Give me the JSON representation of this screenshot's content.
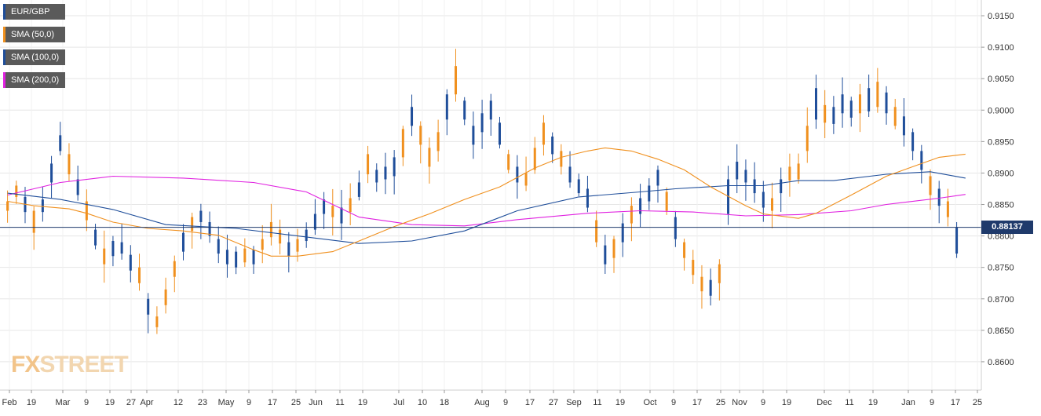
{
  "legend": [
    {
      "label": "EUR/GBP",
      "color": "#1f4e9a"
    },
    {
      "label": "SMA (50,0)",
      "color": "#f0901e"
    },
    {
      "label": "SMA (100,0)",
      "color": "#1f4e9a"
    },
    {
      "label": "SMA (200,0)",
      "color": "#e020e0"
    }
  ],
  "watermark": {
    "fx": "FX",
    "street": "STREET"
  },
  "last_price_label": "0.88137",
  "colors": {
    "bull": "#1f4e9a",
    "bear": "#f0901e",
    "sma50": "#f0901e",
    "sma100": "#1f4e9a",
    "sma200": "#e020e0",
    "price_line": "#1f3a6b",
    "grid": "#e6e6e6",
    "axis_text": "#333333"
  },
  "chart_data": {
    "type": "candlestick",
    "symbol": "EUR/GBP",
    "timeframe": "daily",
    "ylim": [
      0.8555,
      0.9175
    ],
    "y_ticks": [
      "0.9150",
      "0.9100",
      "0.9050",
      "0.9000",
      "0.8950",
      "0.8900",
      "0.8850",
      "0.8800",
      "0.8750",
      "0.8700",
      "0.8650",
      "0.8600"
    ],
    "x_ticks": [
      "Feb",
      "19",
      "Mar",
      "9",
      "19",
      "27",
      "Apr",
      "12",
      "23",
      "May",
      "9",
      "17",
      "25",
      "Jun",
      "11",
      "19",
      "Jul",
      "10",
      "18",
      "Aug",
      "9",
      "17",
      "27",
      "Sep",
      "11",
      "19",
      "Oct",
      "9",
      "17",
      "25",
      "Nov",
      "9",
      "19",
      "Dec",
      "11",
      "19",
      "Jan",
      "9",
      "17",
      "25"
    ],
    "last_price": 0.88137,
    "price_anchors": [
      [
        0.884,
        0.8855
      ],
      [
        0.8862,
        0.888
      ],
      [
        0.8838,
        0.8862
      ],
      [
        0.8805,
        0.884
      ],
      [
        0.8838,
        0.8858
      ],
      [
        0.8885,
        0.8915
      ],
      [
        0.8935,
        0.896
      ],
      [
        0.8898,
        0.893
      ],
      [
        0.8865,
        0.889
      ],
      [
        0.8825,
        0.8855
      ],
      [
        0.8785,
        0.881
      ],
      [
        0.8755,
        0.878
      ],
      [
        0.8768,
        0.8792
      ],
      [
        0.8772,
        0.879
      ],
      [
        0.8745,
        0.877
      ],
      [
        0.8725,
        0.875
      ],
      [
        0.8675,
        0.87
      ],
      [
        0.8655,
        0.8672
      ],
      [
        0.869,
        0.8715
      ],
      [
        0.8735,
        0.876
      ],
      [
        0.8775,
        0.8805
      ],
      [
        0.8808,
        0.883
      ],
      [
        0.8822,
        0.884
      ],
      [
        0.88,
        0.8822
      ],
      [
        0.8772,
        0.8795
      ],
      [
        0.8755,
        0.8778
      ],
      [
        0.875,
        0.8775
      ],
      [
        0.8758,
        0.878
      ],
      [
        0.8755,
        0.8778
      ],
      [
        0.8778,
        0.8795
      ],
      [
        0.8798,
        0.8822
      ],
      [
        0.8788,
        0.881
      ],
      [
        0.8768,
        0.879
      ],
      [
        0.8775,
        0.8795
      ],
      [
        0.8792,
        0.881
      ],
      [
        0.881,
        0.8835
      ],
      [
        0.8835,
        0.8858
      ],
      [
        0.883,
        0.8848
      ],
      [
        0.882,
        0.8845
      ],
      [
        0.8838,
        0.886
      ],
      [
        0.8862,
        0.8885
      ],
      [
        0.8898,
        0.893
      ],
      [
        0.8885,
        0.8905
      ],
      [
        0.889,
        0.891
      ],
      [
        0.8895,
        0.8925
      ],
      [
        0.8925,
        0.897
      ],
      [
        0.8975,
        0.9005
      ],
      [
        0.8945,
        0.8975
      ],
      [
        0.891,
        0.894
      ],
      [
        0.8935,
        0.8965
      ],
      [
        0.8985,
        0.9025
      ],
      [
        0.9025,
        0.907
      ],
      [
        0.8985,
        0.9015
      ],
      [
        0.8945,
        0.8975
      ],
      [
        0.8965,
        0.8995
      ],
      [
        0.8985,
        0.9015
      ],
      [
        0.8945,
        0.898
      ],
      [
        0.8905,
        0.893
      ],
      [
        0.8885,
        0.891
      ],
      [
        0.888,
        0.89
      ],
      [
        0.8905,
        0.894
      ],
      [
        0.8945,
        0.898
      ],
      [
        0.893,
        0.8958
      ],
      [
        0.891,
        0.8935
      ],
      [
        0.8885,
        0.891
      ],
      [
        0.8868,
        0.889
      ],
      [
        0.8845,
        0.8875
      ],
      [
        0.879,
        0.8825
      ],
      [
        0.8755,
        0.8785
      ],
      [
        0.8765,
        0.8795
      ],
      [
        0.879,
        0.882
      ],
      [
        0.882,
        0.8848
      ],
      [
        0.8835,
        0.886
      ],
      [
        0.8855,
        0.888
      ],
      [
        0.888,
        0.8905
      ],
      [
        0.884,
        0.887
      ],
      [
        0.8795,
        0.883
      ],
      [
        0.8765,
        0.879
      ],
      [
        0.8738,
        0.8762
      ],
      [
        0.8712,
        0.8735
      ],
      [
        0.8705,
        0.873
      ],
      [
        0.8725,
        0.8755
      ],
      [
        0.8835,
        0.889
      ],
      [
        0.889,
        0.8918
      ],
      [
        0.8885,
        0.8905
      ],
      [
        0.8868,
        0.889
      ],
      [
        0.8845,
        0.887
      ],
      [
        0.884,
        0.886
      ],
      [
        0.8868,
        0.889
      ],
      [
        0.8888,
        0.891
      ],
      [
        0.889,
        0.8915
      ],
      [
        0.8935,
        0.8975
      ],
      [
        0.8985,
        0.9035
      ],
      [
        0.898,
        0.9008
      ],
      [
        0.8978,
        0.9005
      ],
      [
        0.8995,
        0.9025
      ],
      [
        0.8988,
        0.9015
      ],
      [
        0.8995,
        0.9025
      ],
      [
        0.8998,
        0.9035
      ],
      [
        0.9005,
        0.9045
      ],
      [
        0.8995,
        0.9028
      ],
      [
        0.8975,
        0.9005
      ],
      [
        0.896,
        0.899
      ],
      [
        0.8935,
        0.8965
      ],
      [
        0.8905,
        0.8935
      ],
      [
        0.8865,
        0.8895
      ],
      [
        0.8848,
        0.8875
      ],
      [
        0.883,
        0.8855
      ]
    ],
    "last_candle": {
      "open": 0.8772,
      "high": 0.8822,
      "low": 0.8765,
      "close": 0.88137
    },
    "sma50": [
      [
        0,
        0.8855
      ],
      [
        3,
        0.8848
      ],
      [
        7,
        0.8843
      ],
      [
        9,
        0.8836
      ],
      [
        12,
        0.8822
      ],
      [
        16,
        0.8812
      ],
      [
        20,
        0.8808
      ],
      [
        24,
        0.8801
      ],
      [
        28,
        0.8778
      ],
      [
        30,
        0.8768
      ],
      [
        33,
        0.8768
      ],
      [
        37,
        0.8775
      ],
      [
        40,
        0.8792
      ],
      [
        44,
        0.8815
      ],
      [
        48,
        0.8835
      ],
      [
        52,
        0.8858
      ],
      [
        56,
        0.8878
      ],
      [
        60,
        0.8908
      ],
      [
        63,
        0.8925
      ],
      [
        66,
        0.8935
      ],
      [
        68,
        0.894
      ],
      [
        71,
        0.8935
      ],
      [
        74,
        0.8922
      ],
      [
        77,
        0.8905
      ],
      [
        80,
        0.8878
      ],
      [
        84,
        0.8848
      ],
      [
        86,
        0.8835
      ],
      [
        90,
        0.8828
      ],
      [
        92,
        0.8836
      ],
      [
        96,
        0.8865
      ],
      [
        100,
        0.8895
      ],
      [
        103,
        0.891
      ],
      [
        106,
        0.8925
      ],
      [
        109,
        0.893
      ]
    ],
    "sma100": [
      [
        0,
        0.8868
      ],
      [
        6,
        0.8858
      ],
      [
        12,
        0.8842
      ],
      [
        18,
        0.8818
      ],
      [
        26,
        0.8812
      ],
      [
        33,
        0.88
      ],
      [
        40,
        0.8788
      ],
      [
        46,
        0.8792
      ],
      [
        52,
        0.8808
      ],
      [
        58,
        0.884
      ],
      [
        65,
        0.8862
      ],
      [
        72,
        0.887
      ],
      [
        76,
        0.8875
      ],
      [
        82,
        0.888
      ],
      [
        86,
        0.888
      ],
      [
        90,
        0.8888
      ],
      [
        94,
        0.8888
      ],
      [
        100,
        0.8898
      ],
      [
        105,
        0.8902
      ],
      [
        109,
        0.8892
      ]
    ],
    "sma200": [
      [
        0,
        0.8865
      ],
      [
        6,
        0.8885
      ],
      [
        12,
        0.8895
      ],
      [
        20,
        0.8892
      ],
      [
        28,
        0.8885
      ],
      [
        34,
        0.887
      ],
      [
        40,
        0.883
      ],
      [
        46,
        0.8818
      ],
      [
        52,
        0.8816
      ],
      [
        58,
        0.8826
      ],
      [
        66,
        0.8836
      ],
      [
        72,
        0.884
      ],
      [
        78,
        0.8838
      ],
      [
        84,
        0.8832
      ],
      [
        90,
        0.8834
      ],
      [
        96,
        0.884
      ],
      [
        100,
        0.885
      ],
      [
        106,
        0.886
      ],
      [
        109,
        0.8866
      ]
    ]
  }
}
